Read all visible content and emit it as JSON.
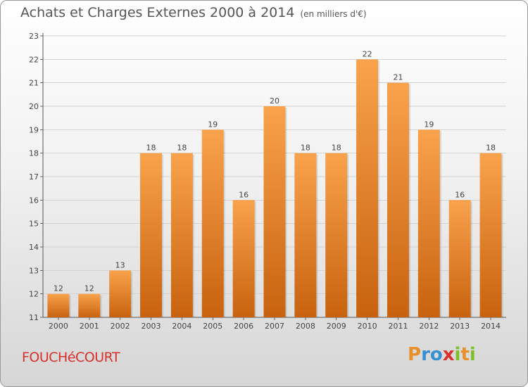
{
  "chart_data": {
    "type": "bar",
    "title": "Achats et Charges Externes 2000 à 2014",
    "subtitle": "(en milliers d'€)",
    "categories": [
      "2000",
      "2001",
      "2002",
      "2003",
      "2004",
      "2005",
      "2006",
      "2007",
      "2008",
      "2009",
      "2010",
      "2011",
      "2012",
      "2013",
      "2014"
    ],
    "values": [
      12,
      12,
      13,
      18,
      18,
      19,
      16,
      20,
      18,
      18,
      22,
      21,
      19,
      16,
      18
    ],
    "ylim": [
      11,
      23
    ],
    "yticks": [
      11,
      12,
      13,
      14,
      15,
      16,
      17,
      18,
      19,
      20,
      21,
      22,
      23
    ],
    "grid": "horizontal",
    "bar_color_top": "#f9a24c",
    "bar_color_bottom": "#c8620f"
  },
  "location": "FOUCHéCOURT",
  "brand": {
    "letters": [
      "P",
      "r",
      "o",
      "x",
      "i",
      "t",
      "i"
    ],
    "colors": [
      "#e8912a",
      "#3a8fd1",
      "#3a8fd1",
      "#d9302b",
      "#7fbf2a",
      "#e8912a",
      "#7fbf2a"
    ]
  }
}
